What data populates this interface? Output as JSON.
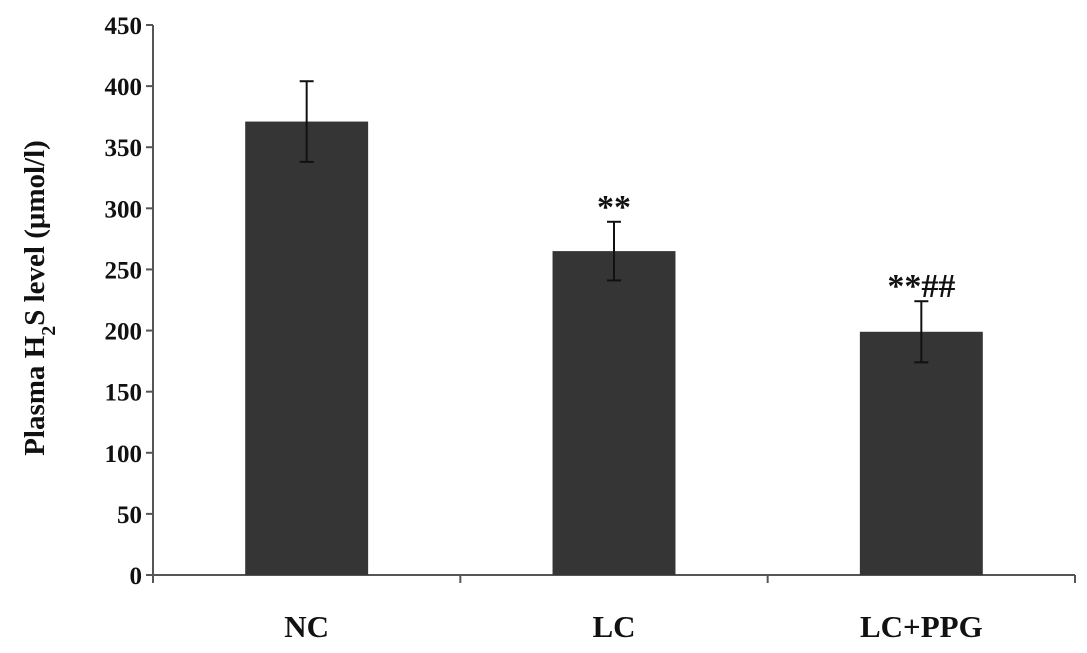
{
  "chart_data": {
    "type": "bar",
    "categories": [
      "NC",
      "LC",
      "LC+PPG"
    ],
    "values": [
      371,
      265,
      199
    ],
    "errors": [
      33,
      24,
      25
    ],
    "annotations": [
      "",
      "**",
      "**##"
    ],
    "ylabel": {
      "prefix": "Plasma H",
      "subscript": "2",
      "suffix": "S level (μmol/l)"
    },
    "ylim": [
      0,
      450
    ],
    "yticks": [
      0,
      50,
      100,
      150,
      200,
      250,
      300,
      350,
      400,
      450
    ],
    "bar_color": "#353535",
    "grid": false
  }
}
